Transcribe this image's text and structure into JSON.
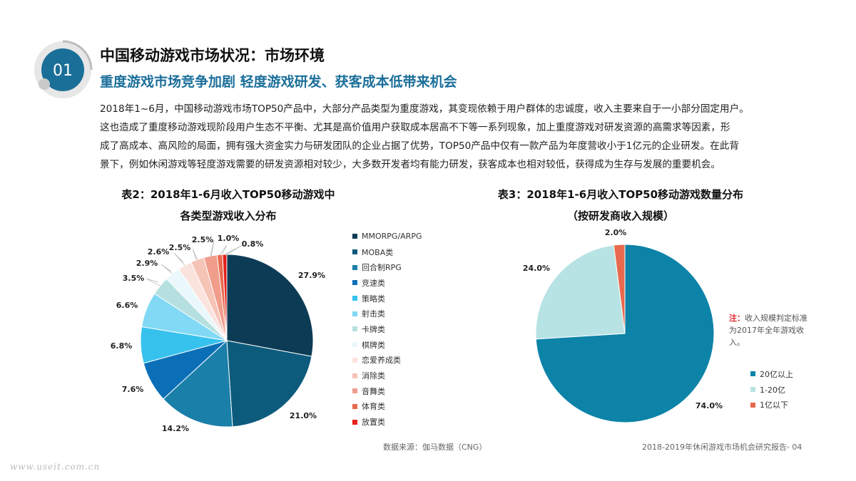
{
  "badge": {
    "number": "01"
  },
  "header": {
    "title": "中国移动游戏市场状况：市场环境",
    "subtitle": "重度游戏市场竞争加剧  轻度游戏研发、获客成本低带来机会"
  },
  "body": {
    "lines": [
      "2018年1~6月，中国移动游戏市场TOP50产品中，大部分产品类型为重度游戏，其变现依赖于用户群体的忠诚度，收入主要来自于一小部分固定用户。",
      "这也造成了重度移动游戏现阶段用户生态不平衡、尤其是高价值用户获取成本居高不下等一系列现象，加上重度游戏对研发资源的高需求等因素，形",
      "成了高成本、高风险的局面，拥有强大资金实力与研发团队的企业占据了优势，TOP50产品中仅有一款产品为年度营收小于1亿元的企业研发。在此背",
      "景下，例如休闲游戏等轻度游戏需要的研发资源相对较少，大多数开发者均有能力研发，获客成本也相对较低，获得成为生存与发展的重要机会。"
    ]
  },
  "chart_data": [
    {
      "type": "pie",
      "title_line1": "表2：2018年1-6月收入TOP50移动游戏中",
      "title_line2": "各类型游戏收入分布",
      "legend_position": "right",
      "slices": [
        {
          "label": "MMORPG/ARPG",
          "value": 27.9,
          "display": "27.9%",
          "color": "#0c3c55"
        },
        {
          "label": "MOBA类",
          "value": 21.0,
          "display": "21.0%",
          "color": "#0d5b7c"
        },
        {
          "label": "回合制RPG",
          "value": 14.2,
          "display": "14.2%",
          "color": "#1a7fa9"
        },
        {
          "label": "竞速类",
          "value": 7.6,
          "display": "7.6%",
          "color": "#0b6fb8"
        },
        {
          "label": "策略类",
          "value": 6.8,
          "display": "6.8%",
          "color": "#37c2ee"
        },
        {
          "label": "射击类",
          "value": 6.6,
          "display": "6.6%",
          "color": "#82d9f5"
        },
        {
          "label": "卡牌类",
          "value": 3.5,
          "display": "3.5%",
          "color": "#b6e0e0"
        },
        {
          "label": "棋牌类",
          "value": 2.9,
          "display": "2.9%",
          "color": "#eaf7fb"
        },
        {
          "label": "恋爱养成类",
          "value": 2.6,
          "display": "2.6%",
          "color": "#fbe3dd"
        },
        {
          "label": "消除类",
          "value": 2.5,
          "display": "2.5%",
          "color": "#f6c3b7"
        },
        {
          "label": "音舞类",
          "value": 2.5,
          "display": "2.5%",
          "color": "#f09d8b"
        },
        {
          "label": "体育类",
          "value": 1.0,
          "display": "1.0%",
          "color": "#e86a4f"
        },
        {
          "label": "放置类",
          "value": 0.8,
          "display": "0.8%",
          "color": "#e3201b"
        }
      ]
    },
    {
      "type": "pie",
      "title_line1": "表3：2018年1-6月收入TOP50移动游戏数量分布",
      "title_line2": "（按研发商收入规模）",
      "legend_position": "bottom-right",
      "slices": [
        {
          "label": "20亿以上",
          "value": 74.0,
          "display": "74.0%",
          "color": "#0d83a8"
        },
        {
          "label": "1-20亿",
          "value": 24.0,
          "display": "24.0%",
          "color": "#b8e3e4"
        },
        {
          "label": "1亿以下",
          "value": 2.0,
          "display": "2.0%",
          "color": "#e8694e"
        }
      ]
    }
  ],
  "note": {
    "prefix": "注：",
    "text": "收入规模判定标准为2017年全年游戏收入。"
  },
  "source": "数据来源：伽马数据（CNG）",
  "footer": "2018-2019年休闲游戏市场机会研究报告- 04",
  "watermark": "www.useit.com.cn"
}
